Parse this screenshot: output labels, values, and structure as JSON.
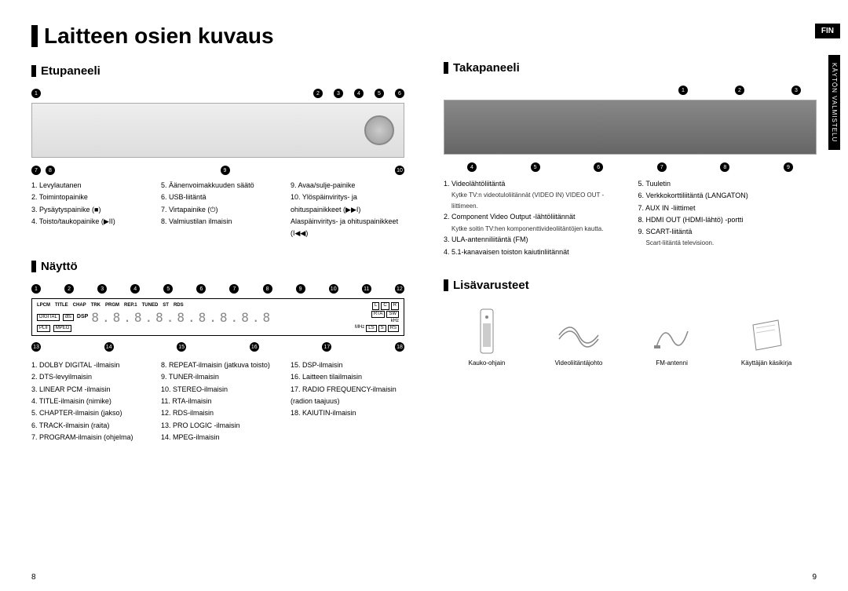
{
  "lang_badge": "FIN",
  "side_tab": "KÄYTÖN VALMISTELU",
  "page_left": "8",
  "page_right": "9",
  "main_title": "Laitteen osien kuvaus",
  "front": {
    "title": "Etupaneeli",
    "callouts_top": [
      "1",
      "2",
      "3",
      "4",
      "5",
      "6"
    ],
    "callouts_bot": [
      "7",
      "8",
      "9",
      "10"
    ],
    "cols": [
      [
        "1.  Levylautanen",
        "2.  Toimintopainike",
        "3.  Pysäytyspainike (■)",
        "4.  Toisto/taukopainike (▶II)"
      ],
      [
        "5.  Äänenvoimakkuuden säätö",
        "6.  USB-liitäntä",
        "7.  Virtapainike (⏻)",
        "8.  Valmiustilan ilmaisin"
      ],
      [
        "9.  Avaa/sulje-painike",
        "10. Ylöspäinviritys- ja ohituspainikkeet (▶▶I)",
        "     Alaspäinviritys- ja ohituspainikkeet (I◀◀)"
      ]
    ]
  },
  "rear": {
    "title": "Takapaneeli",
    "callouts_top": [
      "1",
      "2",
      "3"
    ],
    "callouts_bot": [
      "4",
      "5",
      "6",
      "7",
      "8",
      "9"
    ],
    "cols_left": [
      {
        "t": "1.  Videolähtöliitäntä",
        "n": "Kytke TV:n videotuloliitännät (VIDEO IN) VIDEO OUT -liittimeen."
      },
      {
        "t": "2.  Component Video Output -lähtöliitännät",
        "n": "Kytke soitin TV:hen komponenttivideoliitäntöjen kautta."
      },
      {
        "t": "3.  ULA-antenniliitäntä (FM)",
        "n": ""
      },
      {
        "t": "4.  5.1-kanavaisen toiston kaiutinliitännät",
        "n": ""
      }
    ],
    "cols_right": [
      {
        "t": "5.  Tuuletin",
        "n": ""
      },
      {
        "t": "6.  Verkkokorttiliitäntä (LANGATON)",
        "n": ""
      },
      {
        "t": "7.  AUX IN  -liittimet",
        "n": ""
      },
      {
        "t": "8.  HDMI OUT (HDMI-lähtö) -portti",
        "n": ""
      },
      {
        "t": "9.  SCART-liitäntä",
        "n": "Scart-liitäntä televisioon."
      }
    ]
  },
  "display": {
    "title": "Näyttö",
    "callouts_top": [
      "1",
      "2",
      "3",
      "4",
      "5",
      "6",
      "7",
      "8",
      "9",
      "10",
      "11",
      "12"
    ],
    "callouts_bot": [
      "13",
      "14",
      "15",
      "16",
      "17",
      "18"
    ],
    "labels_row1": [
      "LPCM",
      "TITLE",
      "CHAP",
      "TRK",
      "PRGM",
      "REP.1",
      "TUNED",
      "ST",
      "RDS"
    ],
    "labels_boxes_r": [
      "L",
      "C",
      "R"
    ],
    "labels_row2l": [
      "DIGITAL",
      "dts",
      "DSP"
    ],
    "labels_row3l": [
      "PLII",
      "MPEG"
    ],
    "labels_boxes_r2": [
      "RTA",
      "kHz",
      "MHz"
    ],
    "labels_boxes_r3": [
      "SW",
      "LS",
      "S",
      "RS"
    ],
    "cols": [
      [
        "1.  DOLBY DIGITAL -ilmaisin",
        "2.  DTS-levyilmaisin",
        "3.  LINEAR PCM -ilmaisin",
        "4.  TITLE-ilmaisin (nimike)",
        "5.  CHAPTER-ilmaisin (jakso)",
        "6.  TRACK-ilmaisin (raita)",
        "7.  PROGRAM-ilmaisin (ohjelma)"
      ],
      [
        "8.  REPEAT-ilmaisin (jatkuva toisto)",
        "9.  TUNER-ilmaisin",
        "10. STEREO-ilmaisin",
        "11. RTA-ilmaisin",
        "12. RDS-ilmaisin",
        "13. PRO LOGIC -ilmaisin",
        "14. MPEG-ilmaisin"
      ],
      [
        "15. DSP-ilmaisin",
        "16. Laitteen tilailmaisin",
        "17. RADIO FREQUENCY-ilmaisin",
        "     (radion taajuus)",
        "18. KAIUTIN-ilmaisin"
      ]
    ]
  },
  "accessories": {
    "title": "Lisävarusteet",
    "items": [
      "Kauko-ohjain",
      "Videoliitäntäjohto",
      "FM-antenni",
      "Käyttäjän käsikirja"
    ]
  }
}
